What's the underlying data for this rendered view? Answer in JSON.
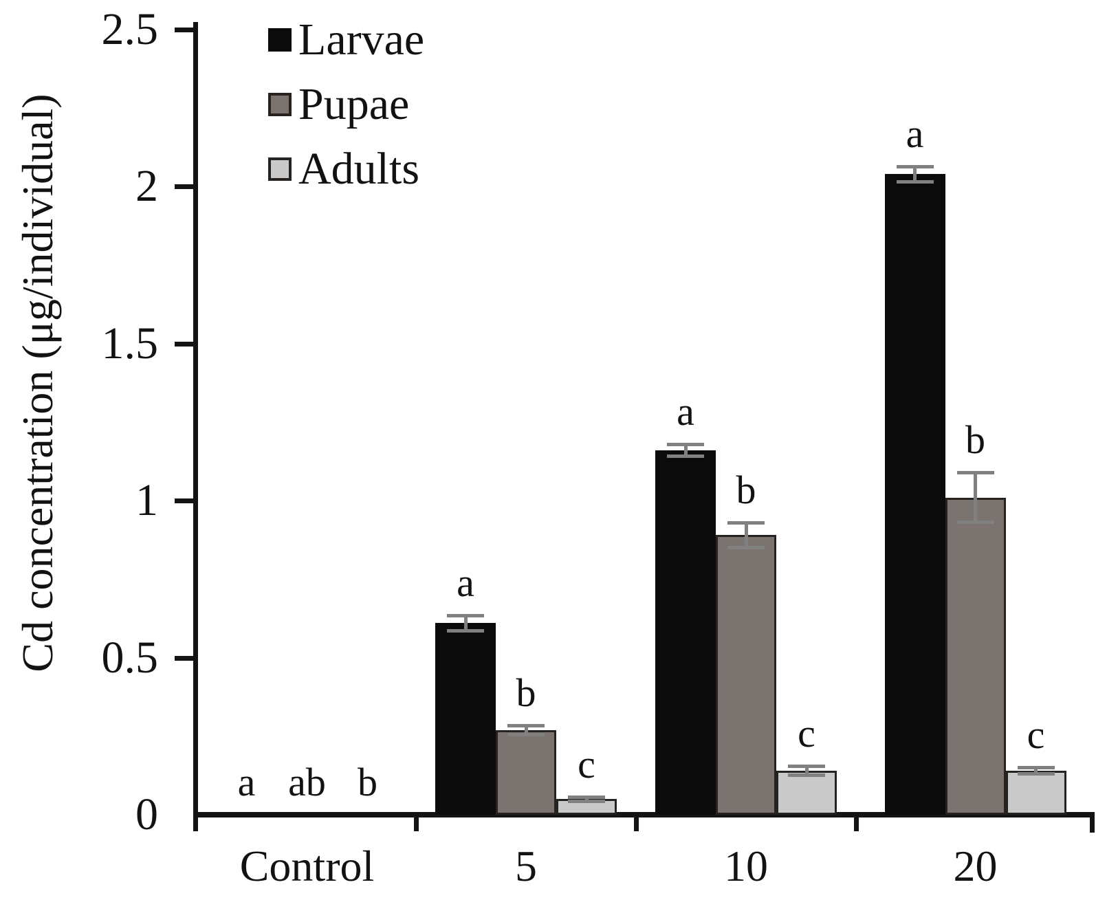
{
  "chart_data": {
    "type": "bar",
    "title": "",
    "ylabel": "Cd concentration (μg/individual)",
    "xlabel": "",
    "categories": [
      "Control",
      "5",
      "10",
      "20"
    ],
    "yticks": [
      0,
      0.5,
      1,
      1.5,
      2,
      2.5
    ],
    "ytick_labels": [
      "0",
      "0.5",
      "1",
      "1.5",
      "2",
      "2.5"
    ],
    "ylim": [
      0,
      2.5
    ],
    "grid": false,
    "legend_position": "top-left-inside",
    "error_bar_color": "#808080",
    "axis_color": "#141414",
    "series": [
      {
        "name": "Larvae",
        "color": "#0b0b0b",
        "border_color": "",
        "values": [
          0,
          0.61,
          1.16,
          2.04
        ],
        "errors": [
          0,
          0.025,
          0.02,
          0.025
        ],
        "letters": [
          "a",
          "a",
          "a",
          "a"
        ]
      },
      {
        "name": "Pupae",
        "color": "#7b7370",
        "border_color": "#262220",
        "values": [
          0,
          0.27,
          0.89,
          1.01
        ],
        "errors": [
          0,
          0.015,
          0.04,
          0.08
        ],
        "letters": [
          "ab",
          "b",
          "b",
          "b"
        ]
      },
      {
        "name": "Adults",
        "color": "#c9c9c9",
        "border_color": "#262220",
        "values": [
          0,
          0.05,
          0.14,
          0.14
        ],
        "errors": [
          0,
          0.008,
          0.015,
          0.01
        ],
        "letters": [
          "b",
          "c",
          "c",
          "c"
        ]
      }
    ]
  }
}
